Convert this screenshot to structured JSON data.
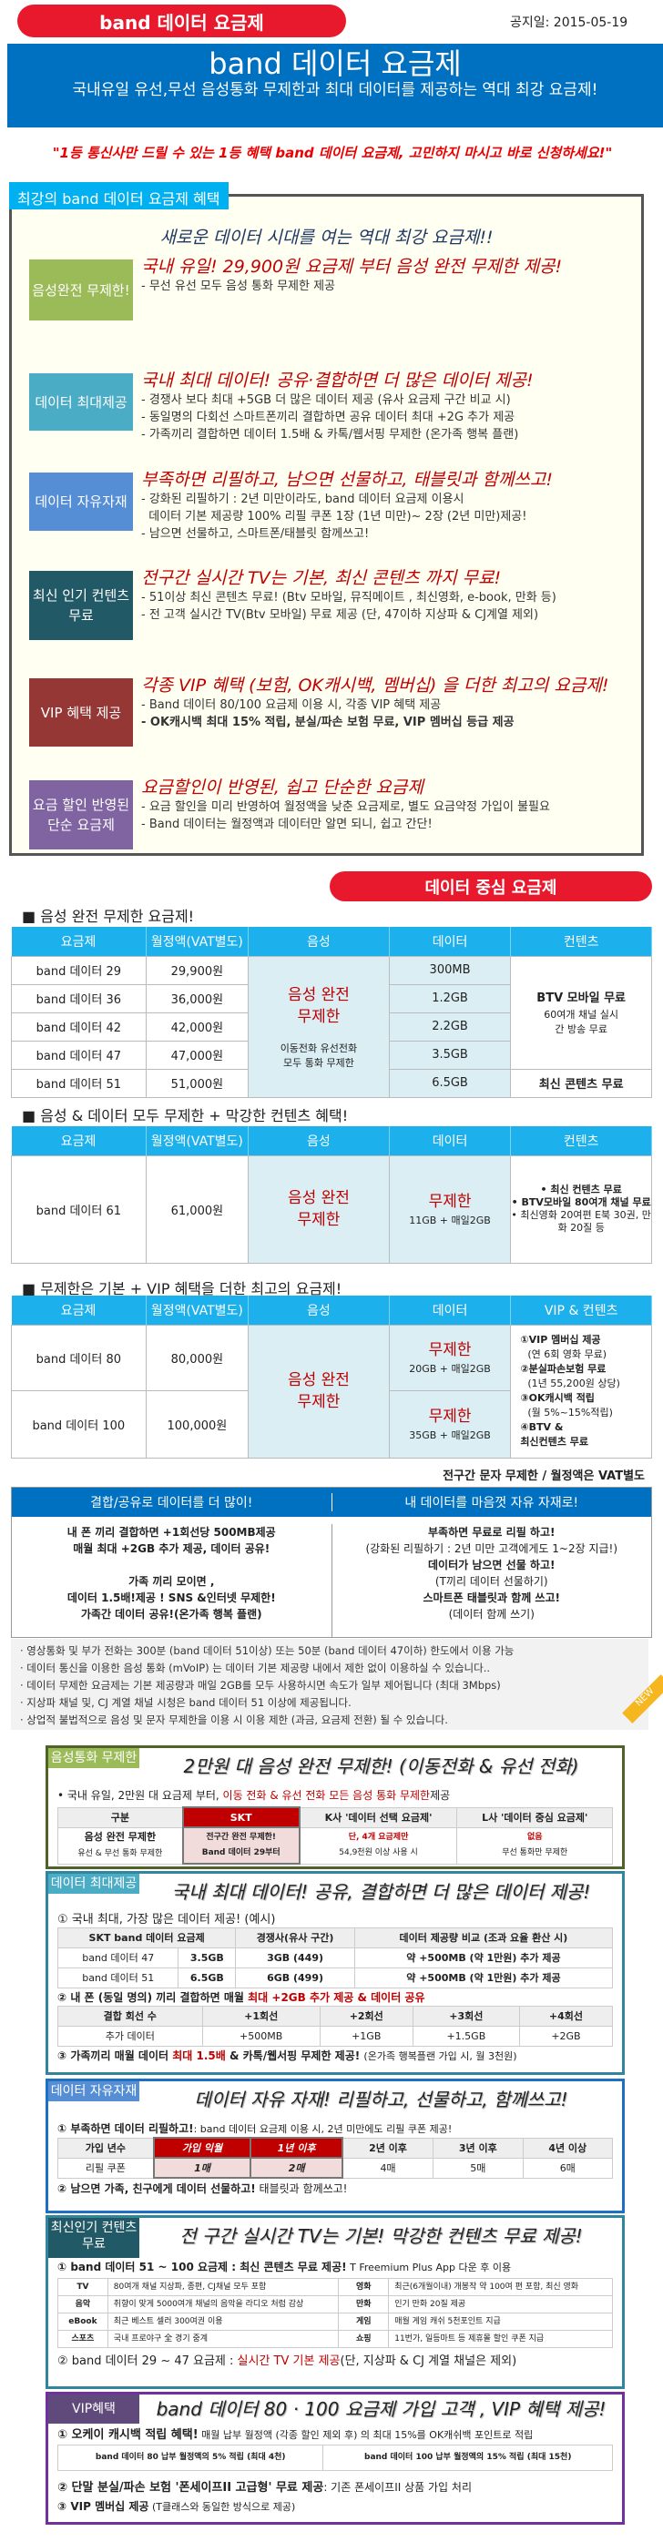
{
  "header": {
    "badge": "band 데이터 요금제",
    "date": "공지일: 2015-05-19"
  },
  "banner": {
    "title": "band 데이터 요금제",
    "subtitle": "국내유일 유선,무선 음성통화 무제한과 최대 데이터를 제공하는 역대 최강 요금제!"
  },
  "quote": "\"1등 통신사만 드릴 수 있는 1등 혜택 band 데이터 요금제, 고민하지 마시고 바로 신청하세요!\"",
  "benefits": {
    "tab": "최강의 band 데이터 요금제 혜택",
    "subtitle": "새로운 데이터 시대를 여는 역대 최강 요금제!!",
    "items": [
      {
        "label": "음성완전 무제한!",
        "color": "#9bbb59",
        "headline": "국내 유일! 29,900원 요금제 부터 음성 완전 무제한 제공!",
        "lines": [
          "- 무선 유선 모두 음성 통화 무제한 제공"
        ]
      },
      {
        "label": "데이터 최대제공",
        "color": "#4bacc6",
        "headline": "국내 최대 데이터! 공유·결합하면 더 많은 데이터 제공!",
        "lines": [
          "- 경쟁사 보다 최대 +5GB 더 많은 데이터 제공 (유사 요금제 구간 비교 시)",
          "- 동일명의 다회선 스마트폰끼리 결합하면 공유 데이터 최대 +2G 추가 제공",
          "- 가족끼리 결합하면 데이터 1.5배 & 카톡/웹서핑 무제한 (온가족 행복 플랜)"
        ]
      },
      {
        "label": "데이터 자유자재",
        "color": "#558ed5",
        "headline": "부족하면 리필하고, 남으면 선물하고, 태블릿과 함께쓰고!",
        "lines": [
          "- 강화된 리필하기 : 2년 미만이라도, band 데이터 요금제 이용시",
          "  데이터 기본 제공량 100% 리필 쿠폰 1장 (1년 미만)~ 2장 (2년 미만)제공!",
          "- 남으면 선물하고, 스마트폰/태블릿 함께쓰고!"
        ]
      },
      {
        "label": "최신 인기 컨텐츠무료",
        "color": "#215967",
        "headline": "전구간 실시간 TV는 기본, 최신 콘텐츠 까지 무료!",
        "lines": [
          "- 51이상 최신 콘텐츠 무료! (Btv 모바일, 뮤직메이트 , 최신영화, e-book, 만화 등)",
          "- 전 고객 실시간 TV(Btv 모바일) 무료 제공 (단, 47이하 지상파 & CJ계열 제외)"
        ]
      },
      {
        "label": "VIP 혜택 제공",
        "color": "#953735",
        "headline": "각종 VIP 혜택 (보험, OK캐시백, 멤버십) 을 더한 최고의 요금제!",
        "lines": [
          "- Band 데이터 80/100 요금제 이용 시, 각종 VIP 혜택 제공",
          "- OK캐시백 최대 15% 적립, 분실/파손 보험 무료, VIP 멤버십 등급 제공"
        ]
      },
      {
        "label": "요금 할인 반영된 단순 요금제",
        "color": "#8064a2",
        "headline": "요금할인이 반영된, 쉽고 단순한 요금제",
        "lines": [
          "- 요금 할인을 미리 반영하여 월정액을 낮춘 요금제로, 별도 요금약정 가입이 불필요",
          "- Band 데이터는 월정액과 데이터만 알면 되니, 쉽고 간단!"
        ]
      }
    ]
  },
  "plans": {
    "badge": "데이터 중심 요금제",
    "headers": [
      "요금제",
      "월정액(VAT별도)",
      "음성",
      "데이터",
      "컨텐츠"
    ],
    "t1": {
      "title": "■ 음성 완전 무제한 요금제!",
      "rows": [
        [
          "band 데이터 29",
          "29,900원",
          "300MB"
        ],
        [
          "band 데이터 36",
          "36,000원",
          "1.2GB"
        ],
        [
          "band 데이터 42",
          "42,000원",
          "2.2GB"
        ],
        [
          "band 데이터 47",
          "47,000원",
          "3.5GB"
        ],
        [
          "band 데이터 51",
          "51,000원",
          "6.5GB"
        ]
      ],
      "voice": "음성 완전 무제한",
      "voice_sub": "이동전화 유선전화 모두 통화 무제한",
      "content_main": "BTV 모바일 무료",
      "content_sub": "60여개 채널 실시간 방송 무료",
      "content_last": "최신 콘텐츠 무료"
    },
    "t2": {
      "title": "■ 음성 & 데이터 모두 무제한 + 막강한 컨텐츠 혜택!",
      "plan": "band 데이터 61",
      "price": "61,000원",
      "voice": "음성 완전 무제한",
      "data": "무제한",
      "data_sub": "11GB + 매일2GB",
      "content": [
        "• 최신 컨텐츠 무료",
        "• BTV모바일 80여개 채널 무료",
        "• 최신영화 20여편 E북 30권, 만화 20질 등"
      ]
    },
    "t3": {
      "title": "■ 무제한은 기본 + VIP 혜택을 더한 최고의 요금제!",
      "last_header": "VIP & 컨텐츠",
      "rows": [
        {
          "plan": "band 데이터 80",
          "price": "80,000원",
          "data": "무제한",
          "data_sub": "20GB + 매일2GB"
        },
        {
          "plan": "band 데이터 100",
          "price": "100,000원",
          "data": "무제한",
          "data_sub": "35GB + 매일2GB"
        }
      ],
      "voice": "음성 완전 무제한",
      "vip": [
        "①VIP 멤버십 제공",
        "(연 6회 영화 무료)",
        "②분실파손보험 무료",
        "(1년 55,200원 상당)",
        "③OK캐시백 적립",
        "(월 5%~15%적립)",
        "④BTV &",
        "최신컨텐츠 무료"
      ]
    },
    "footnote": "전구간 문자 무제한 / 월정액은 VAT별도"
  },
  "combo": {
    "left_header": "결합/공유로 데이터를 더 많이!",
    "right_header": "내 데이터를 마음껏 자유 자재로!",
    "left": [
      "내 폰 끼리 결합하면 +1회선당 500MB제공",
      "매월 최대 +2GB 추가 제공, 데이터 공유!",
      "",
      "가족 끼리 모이면 ,",
      "데이터 1.5배!제공 ! SNS &인터넷 무제한!",
      "가족간 데이터 공유!(온가족 행복 플랜)"
    ],
    "right": [
      "부족하면 무료로 리필 하고!",
      "(강화된 리필하기 : 2년 미만 고객에게도 1~2장 지급!)",
      "데이터가 남으면 선물 하고!",
      "(T끼리 데이터 선물하기)",
      "스마트폰 태블릿과 함께 쓰고!",
      "(데이터 함께 쓰기)"
    ]
  },
  "notes": [
    "· 영상통화 및 부가 전화는 300분 (band 데이터 51이상) 또는 50분 (band 데이터 47이하) 한도에서 이용 가능",
    "· 데이터 통신을 이용한 음성 통화 (mVoIP) 는 데이터 기본 제공량 내에서 제한 없이 이용하실 수 있습니다..",
    "· 데이터 무제한 요금제는 기본 제공량과 매일 2GB를 모두 사용하시면 속도가 일부 제어됩니다 (최대 3Mbps)",
    "· 지상파 채널 및, CJ 계열 채널 시청은 band 데이터 51 이상에 제공됩니다.",
    "· 상업적 불법적으로 음성 및 문자 무제한을 이용 시 이용 제한 (과금, 요금제 전환) 될 수 있습니다."
  ],
  "new_badge": "NEW",
  "voice_box": {
    "label": "음성통화 무제한",
    "headline": "2만원 대 음성 완전 무제한! (이동전화 & 유선 전화)",
    "bullet_pre": "• 국내 유일, 2만원 대 요금제 부터, ",
    "bullet_red": "이동 전화 & 유선 전화 모든 음성 통화 무제한",
    "bullet_post": "제공",
    "headers": [
      "구분",
      "SKT",
      "K사 '데이터 선택 요금제'",
      "L사 '데이터 중심 요금제'"
    ],
    "row_main": "음성 완전 무제한",
    "row_sub": "유선 & 무선 통화 무제한",
    "skt": [
      "전구간 완전 무제한!",
      "Band 데이터 29부터"
    ],
    "k": [
      "단, 4개 요금제만",
      "54,9천원 이상 사용 시"
    ],
    "l": [
      "없음",
      "무선 통화만 무제한"
    ]
  },
  "data_box": {
    "label": "데이터 최대제공",
    "headline": "국내 최대 데이터! 공유, 결합하면 더 많은 데이터 제공!",
    "p1": "① 국내 최대, 가장 많은 데이터 제공! (예시)",
    "t1_headers": [
      "SKT band 데이터 요금제",
      "경쟁사(유사 구간)",
      "데이터 제공량 비교 (조과 요율 환산 시)"
    ],
    "t1_rows": [
      [
        "band 데이터 47",
        "3.5GB",
        "3GB (449)",
        "약 +500MB (약 1만원) 추가 제공"
      ],
      [
        "band 데이터 51",
        "6.5GB",
        "6GB (499)",
        "약 +500MB (약 1만원) 추가 제공"
      ]
    ],
    "p2_pre": "② 내 폰 (동일 명의) 끼리 결합하면 매월 ",
    "p2_red": "최대 +2GB 추가 제공 & 데이터 공유",
    "t2_headers": [
      "결합 회선 수",
      "+1회선",
      "+2회선",
      "+3회선",
      "+4회선"
    ],
    "t2_row": [
      "추가 데이터",
      "+500MB",
      "+1GB",
      "+1.5GB",
      "+2GB"
    ],
    "p3_pre": "③ 가족끼리 매월 데이터 ",
    "p3_red": "최대 1.5배",
    "p3_post": " & 카톡/웹서핑 무제한 제공!",
    "p3_note": "(온가족 행복플랜 가입 시, 월 3천원)"
  },
  "free_box": {
    "label": "데이터 자유자재",
    "headline": "데이터 자유 자재! 리필하고, 선물하고, 함께쓰고!",
    "p1": "① 부족하면 데이터 리필하고!",
    "p1_note": ": band 데이터 요금제 이용 시, 2년 미만에도 리필 쿠폰 제공!",
    "headers": [
      "가입 년수",
      "가입 익월",
      "1년 이후",
      "2년 이후",
      "3년 이후",
      "4년 이상"
    ],
    "row": [
      "리필 쿠폰",
      "1매",
      "2매",
      "4매",
      "5매",
      "6매"
    ],
    "p2": "② 남으면 가족, 친구에게 데이터 선물하고!",
    "p2_note": " 태블릿과 함께쓰고!"
  },
  "content_box": {
    "label": "최신인기 컨텐츠무료",
    "headline": "전 구간 실시간 TV는 기본! 막강한 컨텐츠 무료 제공!",
    "p1": "① band 데이터 51 ~ 100 요금제 : 최신 콘텐츠 무료 제공!",
    "p1_note": " T Freemium Plus App 다운 후 이용",
    "rows": [
      [
        "TV",
        "80여개 채널 지상파, 종편, CJ채널 모두 포함",
        "영화",
        "최근(6개월이내) 개봉작 약 100여 편 포함, 최신 영화"
      ],
      [
        "음악",
        "취향이 맞게 5000여개 채널의 음악을 라디오 처럼 감상",
        "만화",
        "인기 만화 20질 제공"
      ],
      [
        "eBook",
        "최근 베스트 셀러 300여권 이용",
        "게임",
        "매월 게임 캐쉬 5천포인트 지급"
      ],
      [
        "스포츠",
        "국내 프로야구 全 경기 중계",
        "쇼핑",
        "11번가, 일등마트 등 제휴몰 할인 쿠폰 지급"
      ]
    ],
    "p2_pre": "② band 데이터 29 ~ 47 요금제 : ",
    "p2_red": "실시간 TV 기본 제공",
    "p2_post": "(단, 지상파 & CJ 계열 채널은 제외)"
  },
  "vip_box": {
    "label": "VIP혜택",
    "headline": "band 데이터 80 · 100 요금제 가입 고객 , VIP 혜택 제공!",
    "p1": "① 오케이 캐시백 적립 혜택!",
    "p1_note": " 매월 납부 월정액 (각종 할인 제외 후) 의 최대 15%를 OK캐쉬백 포인트로 적립",
    "cells": [
      "band 데이터 80 납부 월정액의 5% 적립 (최대 4천)",
      "band 데이터 100 납부 월정액의 15% 적립 (최대 15천)"
    ],
    "p2": "② 단말 분실/파손 보험 '폰세이프II 고급형' 무료 제공",
    "p2_note": ": 기존 폰세이프II 상품 가입 처리",
    "p3": "③ VIP 멤버십 제공",
    "p3_note": " (T클래스와 동일한 방식으로 제공)"
  }
}
